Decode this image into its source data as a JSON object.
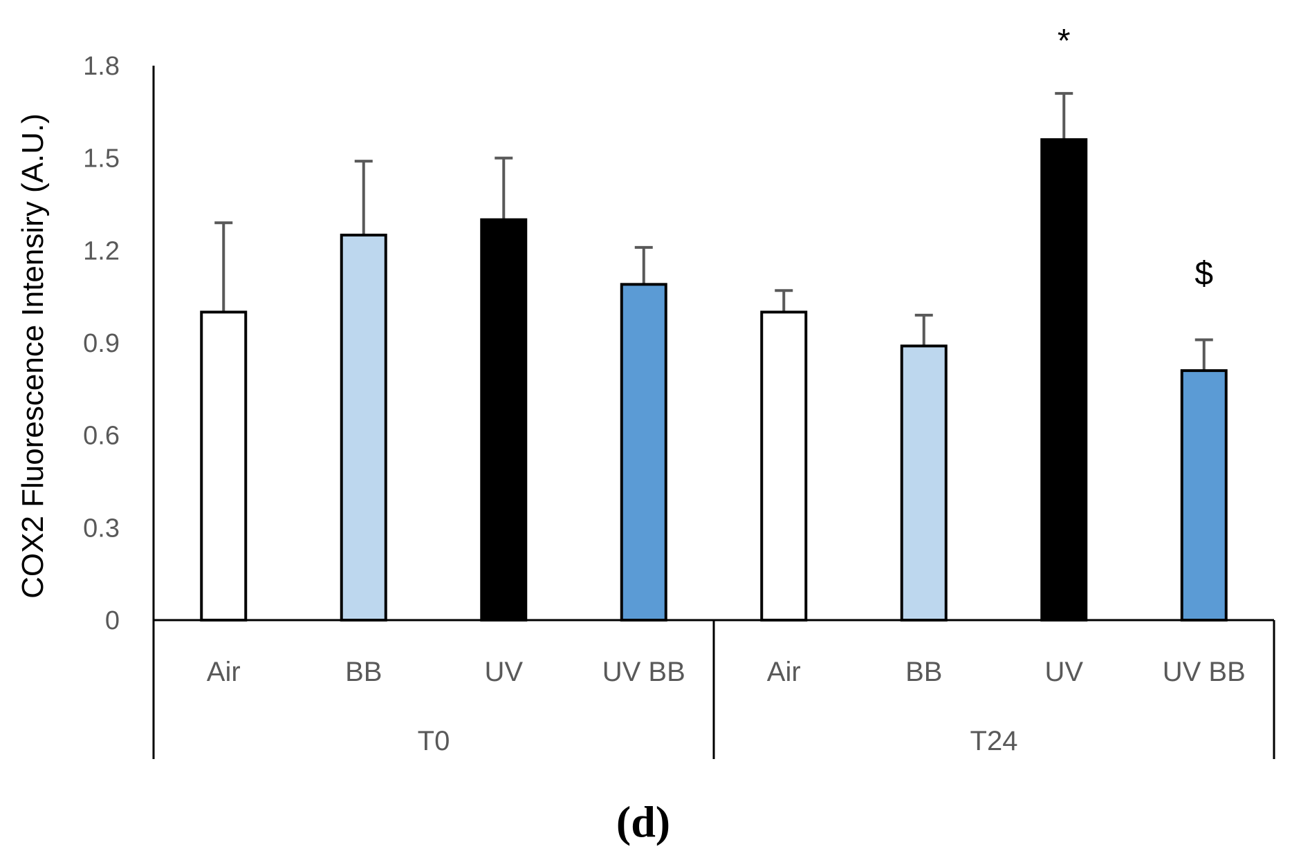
{
  "chart_data": {
    "type": "bar",
    "ylabel": "COX2 Fluorescence Intensiry (A.U.)",
    "ylim": [
      0,
      1.8
    ],
    "yticks": [
      "0",
      "0.3",
      "0.6",
      "0.9",
      "1.2",
      "1.5",
      "1.8"
    ],
    "groups": [
      {
        "name": "T0",
        "bars": [
          {
            "label": "Air",
            "value": 1.0,
            "error": 0.29,
            "color": "#ffffff",
            "annotation": ""
          },
          {
            "label": "BB",
            "value": 1.25,
            "error": 0.24,
            "color": "#bdd7ee",
            "annotation": ""
          },
          {
            "label": "UV",
            "value": 1.3,
            "error": 0.2,
            "color": "#000000",
            "annotation": ""
          },
          {
            "label": "UV BB",
            "value": 1.09,
            "error": 0.12,
            "color": "#5b9bd5",
            "annotation": ""
          }
        ]
      },
      {
        "name": "T24",
        "bars": [
          {
            "label": "Air",
            "value": 1.0,
            "error": 0.07,
            "color": "#ffffff",
            "annotation": ""
          },
          {
            "label": "BB",
            "value": 0.89,
            "error": 0.1,
            "color": "#bdd7ee",
            "annotation": ""
          },
          {
            "label": "UV",
            "value": 1.56,
            "error": 0.15,
            "color": "#000000",
            "annotation": "*"
          },
          {
            "label": "UV BB",
            "value": 0.81,
            "error": 0.1,
            "color": "#5b9bd5",
            "annotation": "$"
          }
        ]
      }
    ],
    "panel_label": "(d)",
    "bar_outline_color": "#000000",
    "error_bar_color": "#595959"
  }
}
